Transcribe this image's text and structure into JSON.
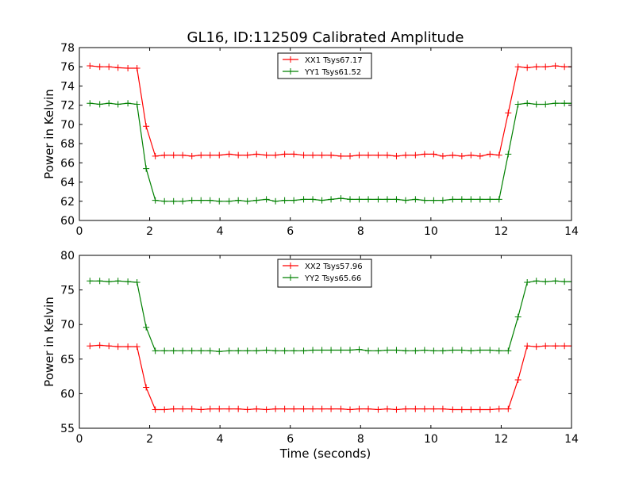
{
  "figure": {
    "title": "GL16, ID:112509 Calibrated Amplitude"
  },
  "chart_data": [
    {
      "type": "line",
      "title": "GL16, ID:112509 Calibrated Amplitude",
      "xlabel": "",
      "ylabel": "Power in Kelvin",
      "xlim": [
        0,
        14
      ],
      "ylim": [
        60,
        78
      ],
      "xticks": [
        "0",
        "2",
        "4",
        "6",
        "8",
        "10",
        "12",
        "14"
      ],
      "yticks": [
        "60",
        "62",
        "64",
        "66",
        "68",
        "70",
        "72",
        "74",
        "76",
        "78"
      ],
      "x": [
        0.3,
        0.58,
        0.84,
        1.1,
        1.38,
        1.64,
        1.9,
        2.16,
        2.42,
        2.68,
        2.94,
        3.2,
        3.46,
        3.72,
        3.98,
        4.26,
        4.52,
        4.78,
        5.04,
        5.32,
        5.58,
        5.84,
        6.1,
        6.38,
        6.64,
        6.9,
        7.16,
        7.44,
        7.7,
        7.96,
        8.22,
        8.5,
        8.76,
        9.02,
        9.28,
        9.56,
        9.82,
        10.08,
        10.34,
        10.62,
        10.88,
        11.14,
        11.4,
        11.68,
        11.94,
        12.2,
        12.48,
        12.74,
        13.0,
        13.26,
        13.54,
        13.8,
        14.0
      ],
      "legend_position": "top-center",
      "grid": false,
      "series": [
        {
          "name": "XX1 Tsys67.17",
          "color": "#ff0000",
          "values": [
            76.1,
            76.0,
            76.0,
            75.9,
            75.85,
            75.85,
            69.8,
            66.7,
            66.8,
            66.8,
            66.8,
            66.7,
            66.8,
            66.8,
            66.8,
            66.9,
            66.8,
            66.8,
            66.9,
            66.8,
            66.8,
            66.9,
            66.9,
            66.8,
            66.8,
            66.8,
            66.8,
            66.7,
            66.7,
            66.8,
            66.8,
            66.8,
            66.8,
            66.7,
            66.8,
            66.8,
            66.9,
            66.9,
            66.7,
            66.8,
            66.7,
            66.8,
            66.7,
            66.9,
            66.8,
            71.2,
            76.0,
            75.9,
            76.0,
            76.0,
            76.1,
            76.0,
            76.0
          ]
        },
        {
          "name": "YY1 Tsys61.52",
          "color": "#008000",
          "values": [
            72.2,
            72.1,
            72.2,
            72.1,
            72.2,
            72.1,
            65.4,
            62.1,
            62.0,
            62.0,
            62.0,
            62.1,
            62.1,
            62.1,
            62.0,
            62.0,
            62.1,
            62.0,
            62.1,
            62.2,
            62.0,
            62.1,
            62.1,
            62.2,
            62.2,
            62.1,
            62.2,
            62.3,
            62.2,
            62.2,
            62.2,
            62.2,
            62.2,
            62.2,
            62.1,
            62.2,
            62.1,
            62.1,
            62.1,
            62.2,
            62.2,
            62.2,
            62.2,
            62.2,
            62.2,
            66.9,
            72.1,
            72.2,
            72.1,
            72.1,
            72.2,
            72.2,
            72.2
          ]
        }
      ]
    },
    {
      "type": "line",
      "title": "",
      "xlabel": "Time (seconds)",
      "ylabel": "Power in Kelvin",
      "xlim": [
        0,
        14
      ],
      "ylim": [
        55,
        80
      ],
      "xticks": [
        "0",
        "2",
        "4",
        "6",
        "8",
        "10",
        "12",
        "14"
      ],
      "yticks": [
        "55",
        "60",
        "65",
        "70",
        "75",
        "80"
      ],
      "x": [
        0.3,
        0.58,
        0.84,
        1.1,
        1.38,
        1.64,
        1.9,
        2.16,
        2.42,
        2.68,
        2.94,
        3.2,
        3.46,
        3.72,
        3.98,
        4.26,
        4.52,
        4.78,
        5.04,
        5.32,
        5.58,
        5.84,
        6.1,
        6.38,
        6.64,
        6.9,
        7.16,
        7.44,
        7.7,
        7.96,
        8.22,
        8.5,
        8.76,
        9.02,
        9.28,
        9.56,
        9.82,
        10.08,
        10.34,
        10.62,
        10.88,
        11.14,
        11.4,
        11.68,
        11.94,
        12.2,
        12.48,
        12.74,
        13.0,
        13.26,
        13.54,
        13.8,
        14.0
      ],
      "legend_position": "top-center",
      "grid": false,
      "series": [
        {
          "name": "XX2 Tsys57.96",
          "color": "#ff0000",
          "values": [
            66.9,
            67.0,
            66.9,
            66.8,
            66.8,
            66.8,
            60.9,
            57.7,
            57.7,
            57.8,
            57.8,
            57.8,
            57.7,
            57.8,
            57.8,
            57.8,
            57.8,
            57.7,
            57.8,
            57.7,
            57.8,
            57.8,
            57.8,
            57.8,
            57.8,
            57.8,
            57.8,
            57.8,
            57.7,
            57.8,
            57.8,
            57.7,
            57.8,
            57.7,
            57.8,
            57.8,
            57.8,
            57.8,
            57.8,
            57.7,
            57.7,
            57.7,
            57.7,
            57.7,
            57.8,
            57.8,
            62.0,
            66.9,
            66.8,
            66.9,
            66.9,
            66.9,
            66.9
          ]
        },
        {
          "name": "YY2 Tsys65.66",
          "color": "#008000",
          "values": [
            76.3,
            76.3,
            76.2,
            76.3,
            76.2,
            76.1,
            69.6,
            66.2,
            66.2,
            66.2,
            66.2,
            66.2,
            66.2,
            66.2,
            66.1,
            66.2,
            66.2,
            66.2,
            66.2,
            66.3,
            66.2,
            66.2,
            66.2,
            66.2,
            66.3,
            66.3,
            66.3,
            66.3,
            66.3,
            66.4,
            66.2,
            66.2,
            66.3,
            66.3,
            66.2,
            66.2,
            66.3,
            66.2,
            66.2,
            66.3,
            66.3,
            66.2,
            66.3,
            66.3,
            66.2,
            66.2,
            71.1,
            76.1,
            76.3,
            76.2,
            76.3,
            76.2,
            76.2
          ]
        }
      ]
    }
  ]
}
